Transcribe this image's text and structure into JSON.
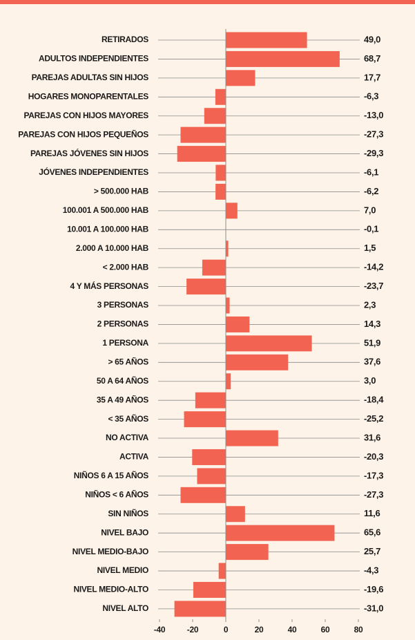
{
  "chart_data": {
    "type": "barh",
    "categories": [
      "RETIRADOS",
      "ADULTOS INDEPENDIENTES",
      "PAREJAS ADULTAS SIN HIJOS",
      "HOGARES MONOPARENTALES",
      "PAREJAS CON HIJOS MAYORES",
      "PAREJAS CON HIJOS PEQUEÑOS",
      "PAREJAS JÓVENES SIN HIJOS",
      "JÓVENES INDEPENDIENTES",
      "> 500.000 HAB",
      "100.001 A 500.000 HAB",
      "10.001 A 100.000 HAB",
      "2.000 A 10.000 HAB",
      "< 2.000 HAB",
      "4 Y MÁS PERSONAS",
      "3 PERSONAS",
      "2 PERSONAS",
      "1 PERSONA",
      "> 65 AÑOS",
      "50 A 64 AÑOS",
      "35 A 49 AÑOS",
      "< 35 AÑOS",
      "NO ACTIVA",
      "ACTIVA",
      "NIÑOS 6 A 15 AÑOS",
      "NIÑOS < 6 AÑOS",
      "SIN NIÑOS",
      "NIVEL BAJO",
      "NIVEL MEDIO-BAJO",
      "NIVEL MEDIO",
      "NIVEL MEDIO-ALTO",
      "NIVEL ALTO"
    ],
    "values": [
      49.0,
      68.7,
      17.7,
      -6.3,
      -13.0,
      -27.3,
      -29.3,
      -6.1,
      -6.2,
      7.0,
      -0.1,
      1.5,
      -14.2,
      -23.7,
      2.3,
      14.3,
      51.9,
      37.6,
      3.0,
      -18.4,
      -25.2,
      31.6,
      -20.3,
      -17.3,
      -27.3,
      11.6,
      65.6,
      25.7,
      -4.3,
      -19.6,
      -31.0
    ],
    "value_labels": [
      "49,0",
      "68,7",
      "17,7",
      "-6,3",
      "-13,0",
      "-27,3",
      "-29,3",
      "-6,1",
      "-6,2",
      "7,0",
      "-0,1",
      "1,5",
      "-14,2",
      "-23,7",
      "2,3",
      "14,3",
      "51,9",
      "37,6",
      "3,0",
      "-18,4",
      "-25,2",
      "31,6",
      "-20,3",
      "-17,3",
      "-27,3",
      "11,6",
      "65,6",
      "25,7",
      "-4,3",
      "-19,6",
      "-31,0"
    ],
    "color": "#f26451",
    "xlim": [
      -40,
      80
    ],
    "xticks": [
      -40,
      -20,
      0,
      20,
      40,
      60,
      80
    ]
  }
}
